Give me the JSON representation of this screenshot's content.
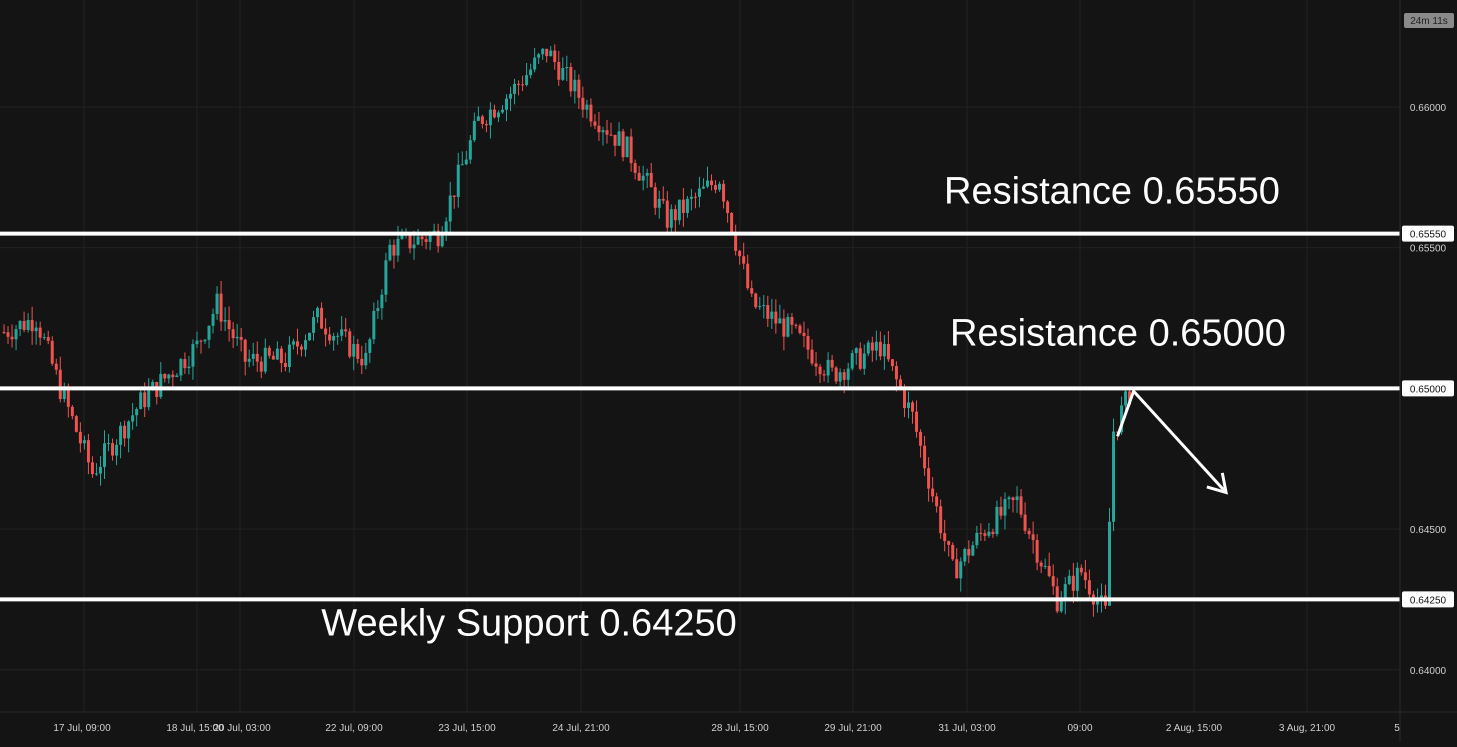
{
  "chart_data": {
    "type": "candlestick",
    "title": "",
    "ylim": [
      0.6385,
      0.6638
    ],
    "x_tick_labels": [
      "17 Jul, 09:00",
      "18 Jul, 15:00",
      "20 Jul, 03:00",
      "22 Jul, 09:00",
      "23 Jul, 15:00",
      "24 Jul, 21:00",
      "28 Jul, 15:00",
      "29 Jul, 21:00",
      "31 Jul, 03:00",
      "09:00",
      "2 Aug, 15:00",
      "3 Aug, 21:00",
      "5"
    ],
    "y_ticks": [
      {
        "value": 0.66,
        "label": "0.66000"
      },
      {
        "value": 0.655,
        "label": "0.65500"
      },
      {
        "value": 0.645,
        "label": "0.64500"
      },
      {
        "value": 0.64,
        "label": "0.64000"
      }
    ],
    "levels": [
      {
        "value": 0.6555,
        "label": "Resistance 0.65550",
        "price_tag": "0.65550"
      },
      {
        "value": 0.65,
        "label": "Resistance 0.65000",
        "price_tag": "0.65000"
      },
      {
        "value": 0.6425,
        "label": "Weekly Support 0.64250",
        "price_tag": "0.64250"
      }
    ],
    "path_keypoints": [
      {
        "bar": 0,
        "close": 0.652
      },
      {
        "bar": 8,
        "close": 0.6525
      },
      {
        "bar": 14,
        "close": 0.65
      },
      {
        "bar": 22,
        "close": 0.647
      },
      {
        "bar": 34,
        "close": 0.6495
      },
      {
        "bar": 48,
        "close": 0.6515
      },
      {
        "bar": 53,
        "close": 0.653
      },
      {
        "bar": 60,
        "close": 0.651
      },
      {
        "bar": 70,
        "close": 0.651
      },
      {
        "bar": 78,
        "close": 0.6525
      },
      {
        "bar": 90,
        "close": 0.651
      },
      {
        "bar": 96,
        "close": 0.655
      },
      {
        "bar": 108,
        "close": 0.6555
      },
      {
        "bar": 118,
        "close": 0.6595
      },
      {
        "bar": 126,
        "close": 0.6605
      },
      {
        "bar": 135,
        "close": 0.662
      },
      {
        "bar": 145,
        "close": 0.66
      },
      {
        "bar": 155,
        "close": 0.6585
      },
      {
        "bar": 165,
        "close": 0.656
      },
      {
        "bar": 170,
        "close": 0.6565
      },
      {
        "bar": 178,
        "close": 0.6575
      },
      {
        "bar": 186,
        "close": 0.653
      },
      {
        "bar": 196,
        "close": 0.652
      },
      {
        "bar": 206,
        "close": 0.6505
      },
      {
        "bar": 218,
        "close": 0.6515
      },
      {
        "bar": 226,
        "close": 0.649
      },
      {
        "bar": 236,
        "close": 0.6435
      },
      {
        "bar": 244,
        "close": 0.645
      },
      {
        "bar": 252,
        "close": 0.646
      },
      {
        "bar": 262,
        "close": 0.6425
      },
      {
        "bar": 268,
        "close": 0.6435
      },
      {
        "bar": 274,
        "close": 0.642
      },
      {
        "bar": 276,
        "close": 0.6485
      },
      {
        "bar": 280,
        "close": 0.6498
      }
    ],
    "projection": [
      {
        "x_bar": 277,
        "y": 0.6483
      },
      {
        "x_bar": 281,
        "y": 0.6499
      },
      {
        "x_bar": 304,
        "y": 0.6463
      }
    ],
    "up_color": "#26a69a",
    "down_color": "#ef5350",
    "countdown": "24m 11s"
  }
}
